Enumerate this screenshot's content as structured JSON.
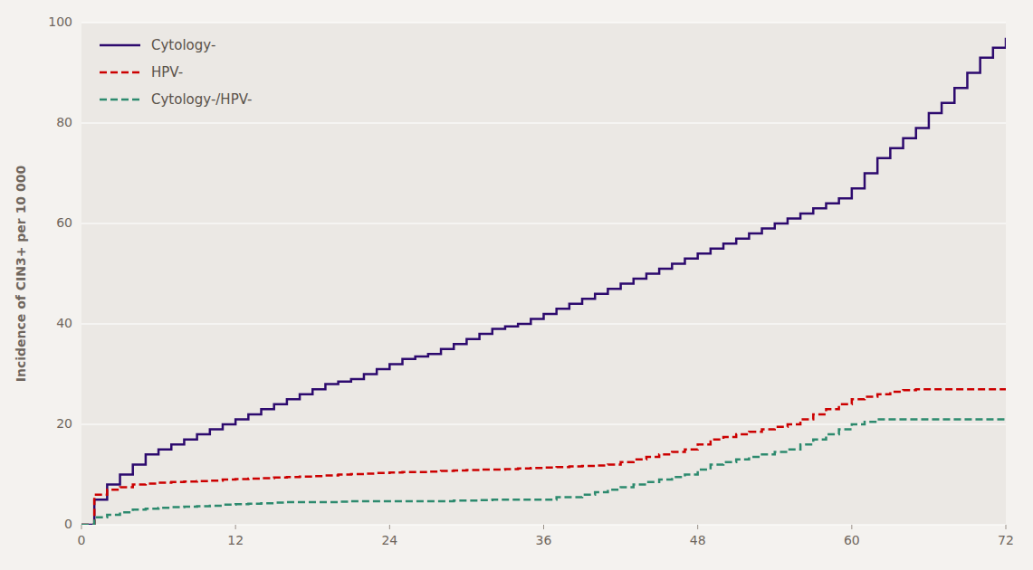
{
  "chart_data": {
    "type": "step",
    "ylabel": "Incidence of CIN3+ per 10 000",
    "xlim": [
      0,
      72
    ],
    "ylim": [
      0,
      100
    ],
    "xticks": [
      0,
      12,
      24,
      36,
      48,
      60,
      72
    ],
    "yticks": [
      0,
      20,
      40,
      60,
      80,
      100
    ],
    "grid": true,
    "legend": "upper-left",
    "x": [
      0,
      1,
      2,
      3,
      4,
      5,
      6,
      7,
      8,
      9,
      10,
      11,
      12,
      13,
      14,
      15,
      16,
      17,
      18,
      19,
      20,
      21,
      22,
      23,
      24,
      25,
      26,
      27,
      28,
      29,
      30,
      31,
      32,
      33,
      34,
      35,
      36,
      37,
      38,
      39,
      40,
      41,
      42,
      43,
      44,
      45,
      46,
      47,
      48,
      49,
      50,
      51,
      52,
      53,
      54,
      55,
      56,
      57,
      58,
      59,
      60,
      61,
      62,
      63,
      64,
      65,
      66,
      67,
      68,
      69,
      70,
      71,
      72
    ],
    "series": [
      {
        "name": "Cytology-",
        "color": "#2d0a6e",
        "line_style": "solid",
        "values": [
          0,
          5,
          8,
          10,
          12,
          14,
          15,
          16,
          17,
          18,
          19,
          20,
          21,
          22,
          23,
          24,
          25,
          26,
          27,
          28,
          28.5,
          29,
          30,
          31,
          32,
          33,
          33.5,
          34,
          35,
          36,
          37,
          38,
          39,
          39.5,
          40,
          41,
          42,
          43,
          44,
          45,
          46,
          47,
          48,
          49,
          50,
          51,
          52,
          53,
          54,
          55,
          56,
          57,
          58,
          59,
          60,
          61,
          62,
          63,
          64,
          65,
          67,
          70,
          73,
          75,
          77,
          79,
          82,
          84,
          87,
          90,
          93,
          95,
          97
        ]
      },
      {
        "name": "HPV-",
        "color": "#cc0000",
        "line_style": "dashed",
        "values": [
          0,
          6,
          7,
          7.5,
          8,
          8.2,
          8.4,
          8.5,
          8.6,
          8.7,
          8.8,
          9,
          9.1,
          9.2,
          9.3,
          9.4,
          9.5,
          9.6,
          9.7,
          9.8,
          10,
          10.1,
          10.2,
          10.3,
          10.4,
          10.5,
          10.5,
          10.6,
          10.7,
          10.8,
          10.9,
          11,
          11,
          11.1,
          11.2,
          11.3,
          11.4,
          11.5,
          11.6,
          11.7,
          11.8,
          12,
          12.5,
          13,
          13.5,
          14,
          14.5,
          15,
          16,
          17,
          17.5,
          18,
          18.5,
          19,
          19.5,
          20,
          21,
          22,
          23,
          24,
          25,
          25.5,
          26,
          26.5,
          26.8,
          27,
          27,
          27,
          27,
          27,
          27,
          27,
          27
        ]
      },
      {
        "name": "Cytology-/HPV-",
        "color": "#2d8a6e",
        "line_style": "dashed",
        "values": [
          0,
          1.5,
          2,
          2.5,
          3,
          3.2,
          3.4,
          3.5,
          3.6,
          3.7,
          3.8,
          4,
          4.1,
          4.2,
          4.3,
          4.4,
          4.5,
          4.5,
          4.5,
          4.5,
          4.6,
          4.7,
          4.7,
          4.7,
          4.7,
          4.7,
          4.7,
          4.7,
          4.7,
          4.8,
          4.8,
          4.9,
          5,
          5,
          5,
          5,
          5,
          5.5,
          5.5,
          6,
          6.5,
          7,
          7.5,
          8,
          8.5,
          9,
          9.5,
          10,
          11,
          12,
          12.5,
          13,
          13.5,
          14,
          14.5,
          15,
          16,
          17,
          18,
          19,
          20,
          20.5,
          21,
          21,
          21,
          21,
          21,
          21,
          21,
          21,
          21,
          21,
          21
        ]
      }
    ]
  }
}
